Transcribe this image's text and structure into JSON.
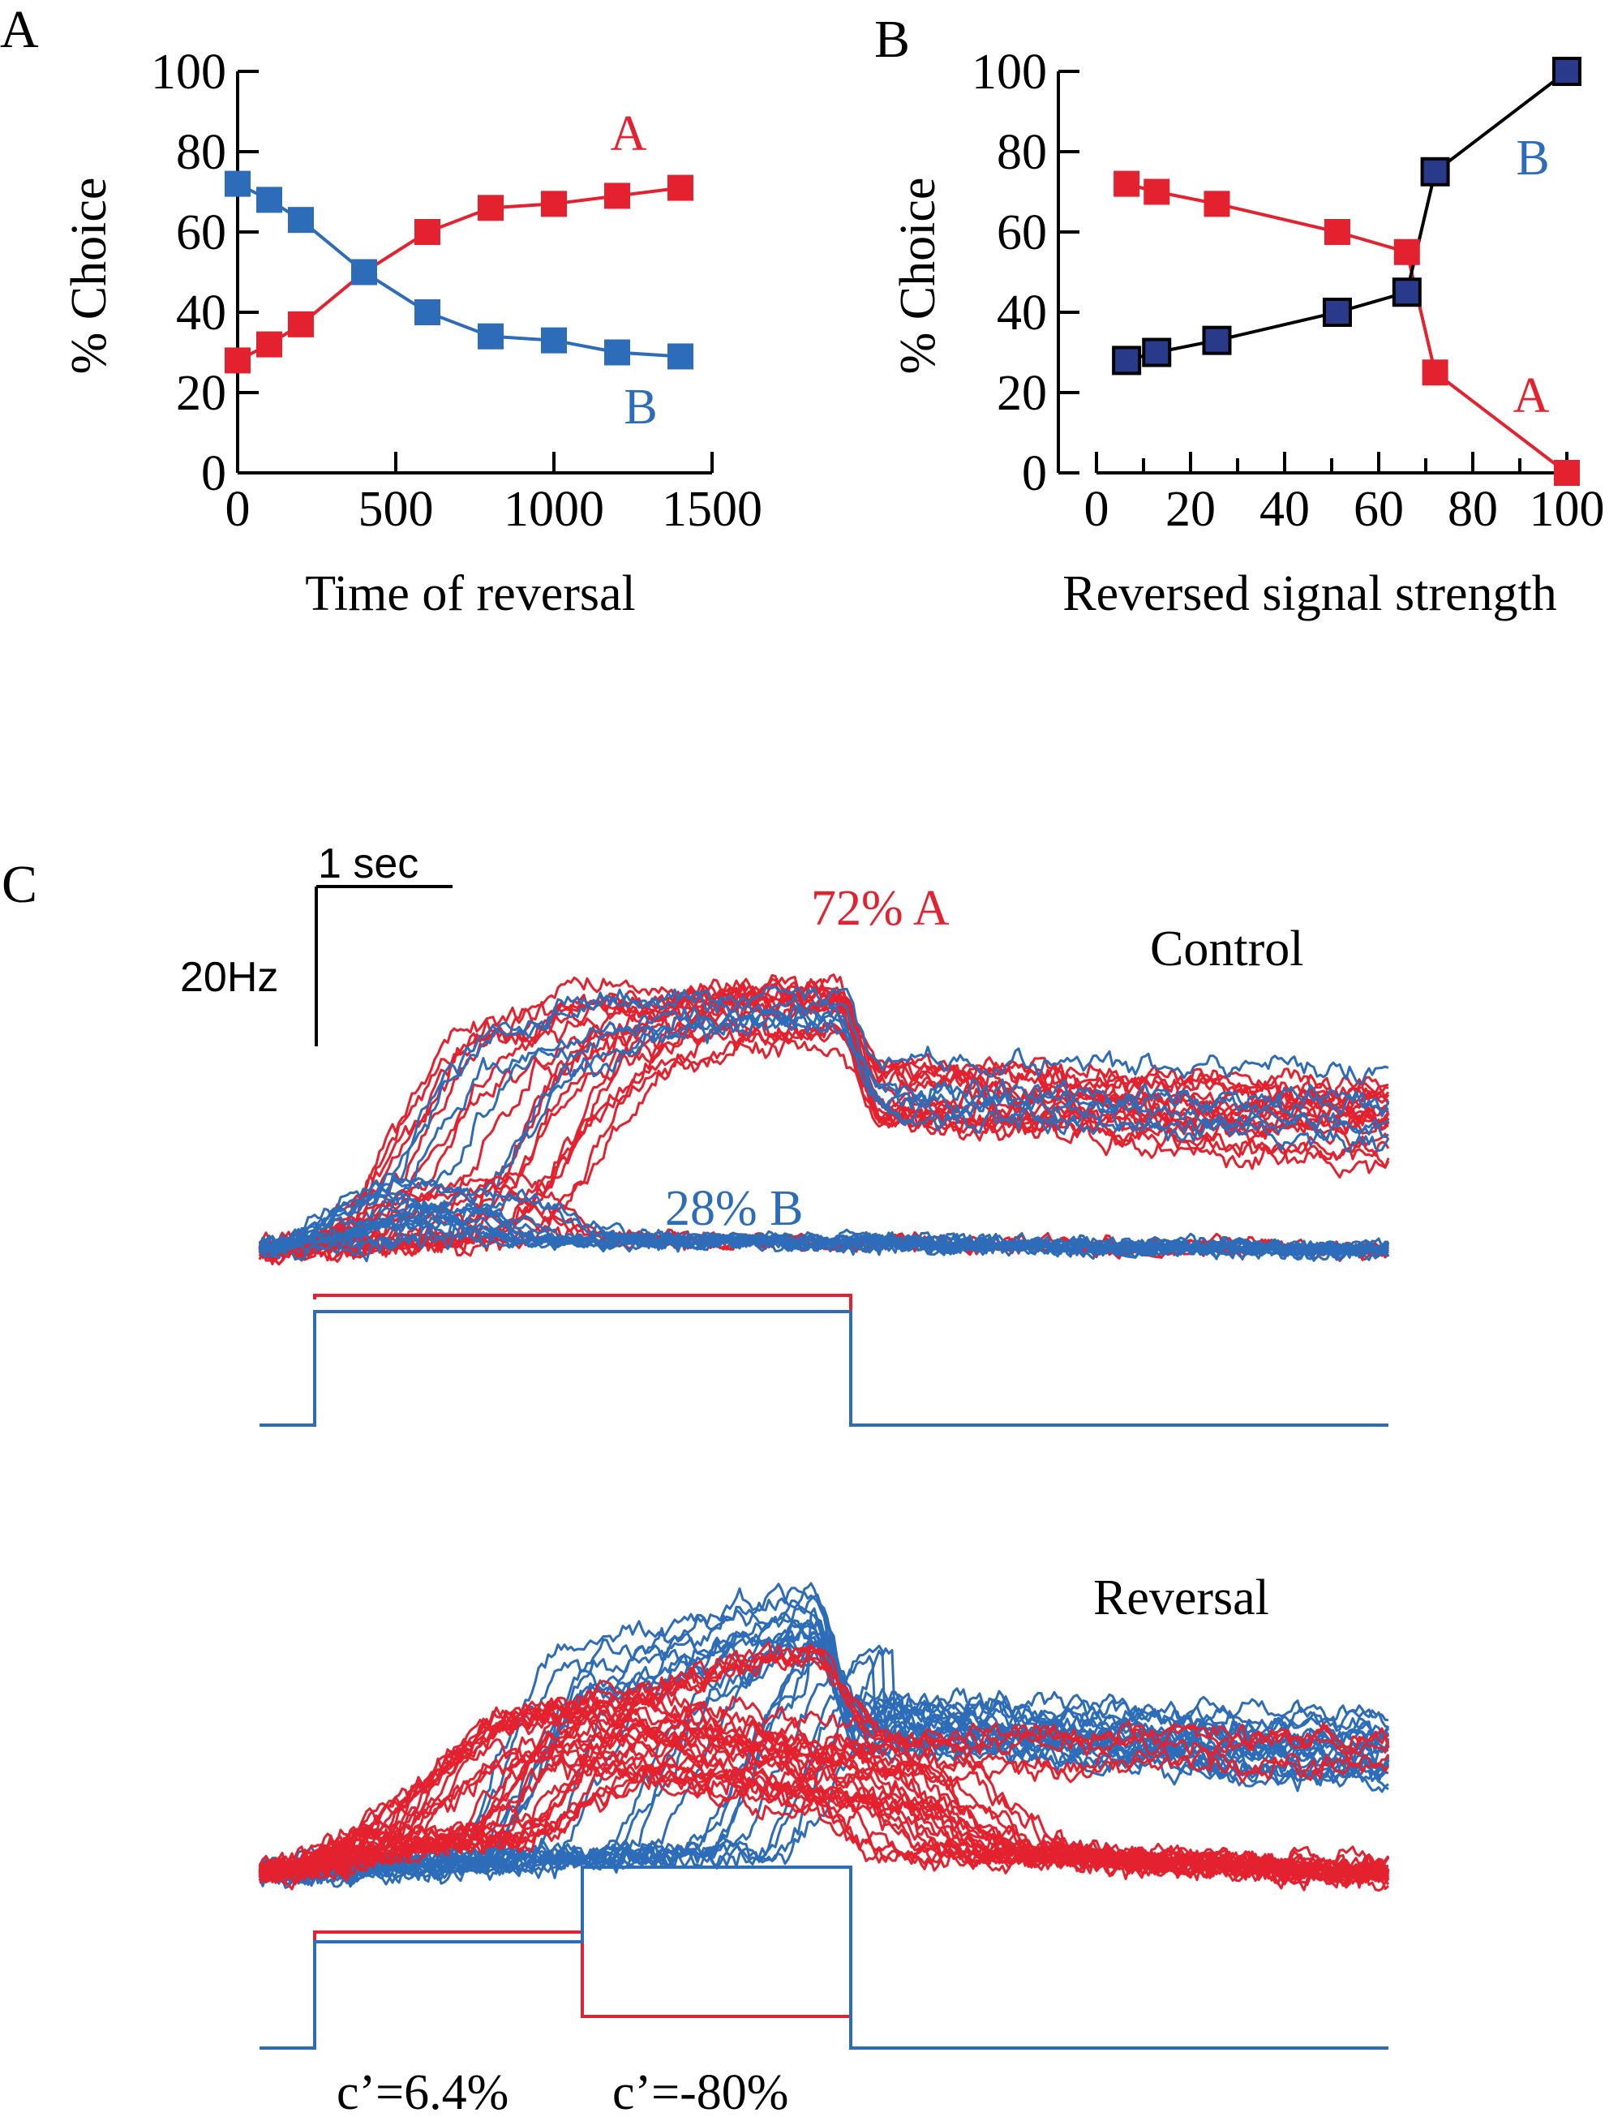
{
  "colors": {
    "red": "#e4222f",
    "blue": "#2d6cb8",
    "navy": "#2a3a8a",
    "black": "#000000"
  },
  "chart_data": [
    {
      "panel": "A",
      "type": "line",
      "xlabel": "Time of reversal",
      "ylabel": "% Choice",
      "xlim": [
        0,
        1500
      ],
      "ylim": [
        0,
        100
      ],
      "xticks": [
        "0",
        "500",
        "1000",
        "1500"
      ],
      "yticks": [
        "0",
        "20",
        "40",
        "60",
        "80",
        "100"
      ],
      "grid": false,
      "series": [
        {
          "name": "A",
          "color": "#e4222f",
          "marker": "filled-square",
          "x": [
            0,
            100,
            200,
            400,
            600,
            800,
            1000,
            1200,
            1400
          ],
          "y": [
            28,
            32,
            37,
            50,
            60,
            66,
            67,
            69,
            71
          ]
        },
        {
          "name": "B",
          "color": "#2d6cb8",
          "marker": "filled-square",
          "x": [
            0,
            100,
            200,
            400,
            600,
            800,
            1000,
            1200,
            1400
          ],
          "y": [
            72,
            68,
            63,
            50,
            40,
            34,
            33,
            30,
            29
          ]
        }
      ]
    },
    {
      "panel": "B",
      "type": "line",
      "xlabel": "Reversed signal strength",
      "ylabel": "% Choice",
      "xlim": [
        0,
        100
      ],
      "ylim": [
        0,
        100
      ],
      "xticks": [
        "0",
        "20",
        "40",
        "60",
        "80",
        "100"
      ],
      "yticks": [
        "0",
        "20",
        "40",
        "60",
        "80",
        "100"
      ],
      "grid": false,
      "series": [
        {
          "name": "A",
          "color": "#e4222f",
          "marker": "filled-square",
          "x": [
            6.4,
            12.8,
            25.6,
            51.2,
            66,
            72,
            100
          ],
          "y": [
            72,
            70,
            67,
            60,
            55,
            25,
            0
          ]
        },
        {
          "name": "B",
          "color": "#000000",
          "marker": "navy-square-outlined",
          "x": [
            6.4,
            12.8,
            25.6,
            51.2,
            66,
            72,
            100
          ],
          "y": [
            28,
            30,
            33,
            40,
            45,
            75,
            100
          ]
        }
      ]
    },
    {
      "panel": "C",
      "type": "line",
      "scale_bar": {
        "time": "1 sec",
        "rate": "20Hz"
      },
      "traces": [
        {
          "label": "Control",
          "groups": [
            {
              "label": "72% A",
              "color": "#e4222f",
              "share": 0.72
            },
            {
              "label": "28% B",
              "color": "#2d6cb8",
              "share": 0.28
            }
          ],
          "stimulus": {
            "onset_s": 1.0,
            "offset_s": 3.0,
            "end_s": 5.0
          }
        },
        {
          "label": "Reversal",
          "stimulus": {
            "onset_s": 1.0,
            "reversal_s": 2.0,
            "offset_s": 3.0,
            "end_s": 5.0,
            "labels": [
              "c’=6.4%",
              "c’=-80%"
            ]
          }
        }
      ]
    }
  ]
}
